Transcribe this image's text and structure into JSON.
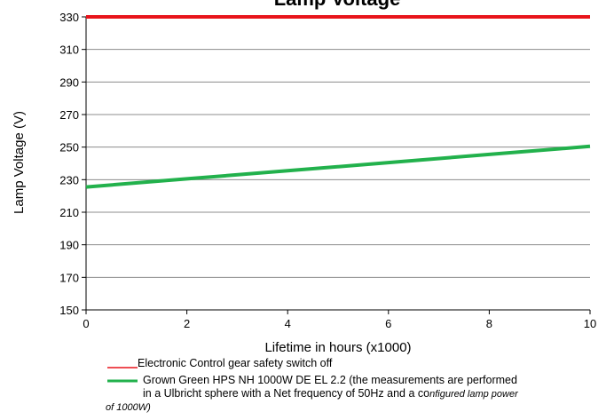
{
  "chart_data": {
    "type": "line",
    "title": "Lamp Voltage",
    "xlabel": "Lifetime in hours (x1000)",
    "ylabel": "Lamp Voltage (V)",
    "xlim": [
      0,
      10
    ],
    "ylim": [
      150,
      330
    ],
    "x_ticks": [
      "0",
      "2",
      "4",
      "6",
      "8",
      "10"
    ],
    "y_ticks": [
      "150",
      "170",
      "190",
      "210",
      "230",
      "250",
      "270",
      "290",
      "310",
      "330"
    ],
    "grid": "horizontal",
    "legend_placement": "bottom",
    "series": [
      {
        "name": "Electronic Control gear safety switch off",
        "color": "#e8141b",
        "x": [
          0,
          10
        ],
        "values": [
          330,
          330
        ]
      },
      {
        "name": "Grown Green HPS NH 1000W DE EL 2.2 (the measurements are performed in a Ulbricht sphere with a Net frequency of 50Hz and a configured lamp power of 1000W)",
        "color": "#22b14c",
        "x": [
          0,
          2,
          4,
          6,
          8,
          10
        ],
        "values": [
          225.5,
          230.5,
          235.5,
          240.5,
          245.5,
          250.5
        ]
      }
    ]
  },
  "legend": {
    "item1": "Electronic Control gear safety switch off",
    "item2_line1": "Grown Green HPS NH 1000W DE EL 2.2 (the measurements are performed",
    "item2_line2a": "in a Ulbricht sphere with a Net frequency of 50Hz and a co",
    "item2_line2b": "nfigured lamp power",
    "item2_line3": "of 1000W)"
  }
}
